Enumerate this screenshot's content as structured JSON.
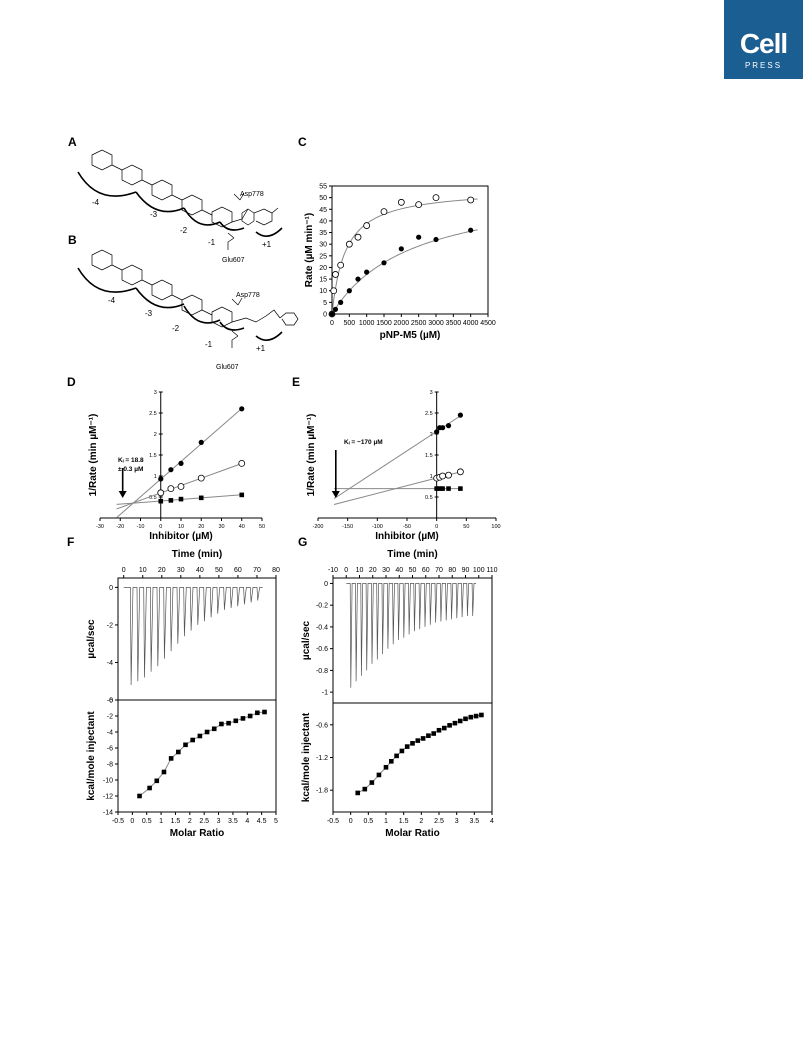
{
  "badge": {
    "word": "Cell",
    "sub": "PRESS"
  },
  "panels": {
    "A": {
      "label": "A",
      "residues": [
        "Asp778"
      ],
      "subsites": [
        "-4",
        "-3",
        "-2",
        "-1",
        "+1"
      ]
    },
    "B": {
      "label": "B",
      "residues": [
        "Asp778",
        "Glu607"
      ],
      "subsites": [
        "-4",
        "-3",
        "-2",
        "-1",
        "+1"
      ]
    },
    "A_extra": {
      "residue": "Glu607"
    },
    "B_extra": {
      "residue": "Glu607"
    }
  },
  "chart_data": [
    {
      "id": "C",
      "label": "C",
      "type": "scatter",
      "xlabel": "pNP-M5 (µM)",
      "ylabel": "Rate (µM min⁻¹)",
      "xlim": [
        0,
        4500
      ],
      "ylim": [
        0,
        55
      ],
      "xticks": [
        0,
        500,
        1000,
        1500,
        2000,
        2500,
        3000,
        3500,
        4000,
        4500
      ],
      "yticks": [
        0,
        5,
        10,
        15,
        20,
        25,
        30,
        35,
        40,
        45,
        50,
        55
      ],
      "series": [
        {
          "marker": "open-circle",
          "x": [
            0,
            50,
            100,
            250,
            500,
            750,
            1000,
            1500,
            2000,
            2500,
            3000,
            4000
          ],
          "y": [
            0,
            10,
            17,
            21,
            30,
            33,
            38,
            44,
            48,
            47,
            50,
            49
          ]
        },
        {
          "marker": "filled-circle",
          "x": [
            0,
            100,
            250,
            500,
            750,
            1000,
            1500,
            2000,
            2500,
            3000,
            4000
          ],
          "y": [
            0,
            2,
            5,
            10,
            15,
            18,
            22,
            28,
            33,
            32,
            36
          ]
        }
      ]
    },
    {
      "id": "D",
      "label": "D",
      "type": "line",
      "xlabel": "Inhibitor (µM)",
      "ylabel": "1/Rate (min µM⁻¹)",
      "xlim": [
        -30,
        50
      ],
      "ylim": [
        0,
        3
      ],
      "xticks": [
        -30,
        -20,
        -10,
        0,
        10,
        20,
        30,
        40,
        50
      ],
      "yticks": [
        0.5,
        1,
        1.5,
        2,
        2.5,
        3
      ],
      "annotation": [
        "Kᵢ = 18.8",
        "± 0.3 µM"
      ],
      "intersect_x": -18.8,
      "series": [
        {
          "marker": "filled-circle",
          "x": [
            0,
            5,
            10,
            20,
            40
          ],
          "y": [
            0.93,
            1.15,
            1.3,
            1.8,
            2.6
          ]
        },
        {
          "marker": "open-circle",
          "x": [
            0,
            5,
            10,
            20,
            40
          ],
          "y": [
            0.6,
            0.7,
            0.75,
            0.95,
            1.3
          ]
        },
        {
          "marker": "filled-square",
          "x": [
            0,
            5,
            10,
            20,
            40
          ],
          "y": [
            0.4,
            0.42,
            0.45,
            0.48,
            0.55
          ]
        }
      ]
    },
    {
      "id": "E",
      "label": "E",
      "type": "line",
      "xlabel": "Inhibitor (µM)",
      "ylabel": "1/Rate (min µM⁻¹)",
      "xlim": [
        -200,
        100
      ],
      "ylim": [
        0,
        3
      ],
      "xticks": [
        -200,
        -150,
        -100,
        -50,
        0,
        50,
        100
      ],
      "yticks": [
        0.5,
        1,
        1.5,
        2,
        2.5,
        3
      ],
      "annotation": [
        "Kᵢ = ~170 µM"
      ],
      "intersect_x": -170,
      "series": [
        {
          "marker": "filled-circle",
          "x": [
            0,
            5,
            10,
            20,
            40
          ],
          "y": [
            2.05,
            2.15,
            2.15,
            2.2,
            2.45
          ]
        },
        {
          "marker": "open-circle",
          "x": [
            0,
            5,
            10,
            20,
            40
          ],
          "y": [
            0.95,
            0.97,
            1,
            1.02,
            1.1
          ]
        },
        {
          "marker": "filled-square",
          "x": [
            0,
            5,
            10,
            20,
            40
          ],
          "y": [
            0.7,
            0.7,
            0.7,
            0.7,
            0.7
          ]
        }
      ]
    },
    {
      "id": "F",
      "label": "F",
      "type": "line",
      "top": {
        "xlabel": "Time (min)",
        "ylabel": "µcal/sec",
        "xlim": [
          -3,
          80
        ],
        "ylim": [
          -6,
          0.5
        ],
        "xticks": [
          0,
          10,
          20,
          30,
          40,
          50,
          60,
          70,
          80
        ],
        "yticks": [
          -6,
          -4,
          -2,
          0
        ],
        "injection_times": [
          3.5,
          7,
          10.5,
          14,
          17.5,
          21,
          24.5,
          28,
          31.5,
          35,
          38.5,
          42,
          45.5,
          49,
          52.5,
          56,
          59.5,
          63,
          66.5,
          70
        ],
        "peak_depths": [
          -5.2,
          -5,
          -4.8,
          -4.5,
          -4.2,
          -3.8,
          -3.4,
          -3,
          -2.6,
          -2.3,
          -2,
          -1.8,
          -1.6,
          -1.4,
          -1.2,
          -1.1,
          -1,
          -0.9,
          -0.8,
          -0.7
        ]
      },
      "bottom": {
        "xlabel": "Molar Ratio",
        "ylabel": "kcal/mole injectant",
        "xlim": [
          -0.5,
          5
        ],
        "ylim": [
          -14,
          0
        ],
        "xticks": [
          -0.5,
          0,
          0.5,
          1,
          1.5,
          2,
          2.5,
          3,
          3.5,
          4,
          4.5,
          5
        ],
        "yticks": [
          -14,
          -12,
          -10,
          -8,
          -6,
          -4,
          -2,
          0
        ],
        "x": [
          0.25,
          0.6,
          0.85,
          1.1,
          1.35,
          1.6,
          1.85,
          2.1,
          2.35,
          2.6,
          2.85,
          3.1,
          3.35,
          3.6,
          3.85,
          4.1,
          4.35,
          4.6
        ],
        "y": [
          -12,
          -11,
          -10.1,
          -9,
          -7.3,
          -6.5,
          -5.6,
          -5,
          -4.5,
          -4,
          -3.6,
          -3,
          -2.9,
          -2.6,
          -2.3,
          -2,
          -1.6,
          -1.5
        ]
      }
    },
    {
      "id": "G",
      "label": "G",
      "type": "line",
      "top": {
        "xlabel": "Time (min)",
        "ylabel": "µcal/sec",
        "xlim": [
          -10,
          110
        ],
        "ylim": [
          -1.1,
          0.05
        ],
        "xticks": [
          -10,
          0,
          10,
          20,
          30,
          40,
          50,
          60,
          70,
          80,
          90,
          100,
          110
        ],
        "yticks": [
          -1,
          -0.8,
          -0.6,
          -0.4,
          -0.2,
          0
        ],
        "injection_times": [
          3,
          7,
          11,
          15,
          19,
          23,
          27,
          31,
          35,
          39,
          43,
          47,
          51,
          55,
          59,
          63,
          67,
          71,
          75,
          79,
          83,
          87,
          91,
          95
        ],
        "peak_depths": [
          -0.96,
          -0.9,
          -0.85,
          -0.8,
          -0.74,
          -0.7,
          -0.65,
          -0.6,
          -0.56,
          -0.52,
          -0.5,
          -0.47,
          -0.44,
          -0.42,
          -0.4,
          -0.38,
          -0.36,
          -0.35,
          -0.34,
          -0.33,
          -0.32,
          -0.31,
          -0.3,
          -0.3
        ]
      },
      "bottom": {
        "xlabel": "Molar Ratio",
        "ylabel": "kcal/mole injectant",
        "xlim": [
          -0.5,
          4
        ],
        "ylim": [
          -2.2,
          -0.2
        ],
        "xticks": [
          -0.5,
          0,
          0.5,
          1,
          1.5,
          2,
          2.5,
          3,
          3.5,
          4
        ],
        "yticks": [
          -1.8,
          -1.2,
          -0.6
        ],
        "x": [
          0.2,
          0.4,
          0.6,
          0.8,
          1,
          1.15,
          1.3,
          1.45,
          1.6,
          1.75,
          1.9,
          2.05,
          2.2,
          2.35,
          2.5,
          2.65,
          2.8,
          2.95,
          3.1,
          3.25,
          3.4,
          3.55,
          3.7
        ],
        "y": [
          -1.85,
          -1.78,
          -1.66,
          -1.52,
          -1.38,
          -1.27,
          -1.17,
          -1.08,
          -1,
          -0.94,
          -0.89,
          -0.85,
          -0.8,
          -0.76,
          -0.7,
          -0.66,
          -0.61,
          -0.57,
          -0.53,
          -0.49,
          -0.46,
          -0.44,
          -0.42
        ]
      }
    }
  ]
}
